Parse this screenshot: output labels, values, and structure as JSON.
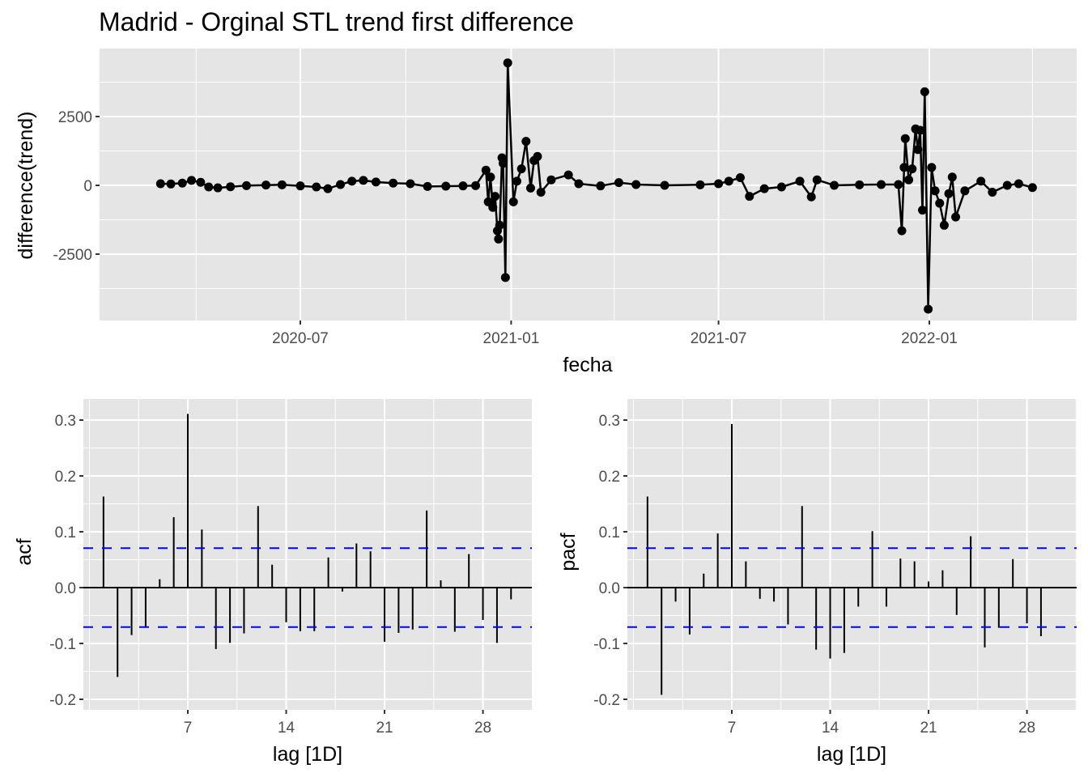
{
  "chart_data": [
    {
      "type": "line",
      "title": "Madrid - Orginal STL trend first difference",
      "xlabel": "fecha",
      "ylabel": "difference(trend)",
      "x_ticks": [
        "2020-07",
        "2021-01",
        "2021-07",
        "2022-01"
      ],
      "y_ticks": [
        "2500",
        "0",
        "-2500"
      ],
      "y_tick_values": [
        2500,
        0,
        -2500
      ],
      "ylim": [
        -4900,
        4900
      ],
      "xlim": [
        "2020-02-01",
        "2022-04-20"
      ],
      "grid": true,
      "markers": true,
      "series": [
        {
          "name": "difference(trend)",
          "color": "#000000",
          "points": [
            [
              "2020-03-01",
              60
            ],
            [
              "2020-03-10",
              50
            ],
            [
              "2020-03-20",
              80
            ],
            [
              "2020-03-28",
              180
            ],
            [
              "2020-04-05",
              110
            ],
            [
              "2020-04-12",
              -60
            ],
            [
              "2020-04-20",
              -90
            ],
            [
              "2020-05-01",
              -50
            ],
            [
              "2020-05-15",
              -10
            ],
            [
              "2020-06-01",
              10
            ],
            [
              "2020-06-15",
              20
            ],
            [
              "2020-07-01",
              -20
            ],
            [
              "2020-07-15",
              -60
            ],
            [
              "2020-07-25",
              -120
            ],
            [
              "2020-08-05",
              30
            ],
            [
              "2020-08-15",
              150
            ],
            [
              "2020-08-25",
              180
            ],
            [
              "2020-09-05",
              120
            ],
            [
              "2020-09-20",
              80
            ],
            [
              "2020-10-05",
              60
            ],
            [
              "2020-10-20",
              -40
            ],
            [
              "2020-11-05",
              -30
            ],
            [
              "2020-11-20",
              -20
            ],
            [
              "2020-12-01",
              -10
            ],
            [
              "2020-12-10",
              550
            ],
            [
              "2020-12-12",
              -600
            ],
            [
              "2020-12-14",
              300
            ],
            [
              "2020-12-16",
              -800
            ],
            [
              "2020-12-18",
              -400
            ],
            [
              "2020-12-20",
              -1650
            ],
            [
              "2020-12-21",
              -1950
            ],
            [
              "2020-12-22",
              -1450
            ],
            [
              "2020-12-24",
              1000
            ],
            [
              "2020-12-25",
              800
            ],
            [
              "2020-12-27",
              -3350
            ],
            [
              "2020-12-29",
              4450
            ],
            [
              "2021-01-03",
              -600
            ],
            [
              "2021-01-06",
              150
            ],
            [
              "2021-01-10",
              600
            ],
            [
              "2021-01-14",
              1600
            ],
            [
              "2021-01-18",
              -100
            ],
            [
              "2021-01-21",
              900
            ],
            [
              "2021-01-24",
              1050
            ],
            [
              "2021-01-27",
              -250
            ],
            [
              "2021-02-05",
              200
            ],
            [
              "2021-02-20",
              380
            ],
            [
              "2021-03-01",
              60
            ],
            [
              "2021-03-20",
              -20
            ],
            [
              "2021-04-05",
              100
            ],
            [
              "2021-04-20",
              30
            ],
            [
              "2021-05-15",
              0
            ],
            [
              "2021-06-15",
              20
            ],
            [
              "2021-07-01",
              60
            ],
            [
              "2021-07-10",
              150
            ],
            [
              "2021-07-20",
              280
            ],
            [
              "2021-07-28",
              -400
            ],
            [
              "2021-08-10",
              -120
            ],
            [
              "2021-08-25",
              -60
            ],
            [
              "2021-09-10",
              150
            ],
            [
              "2021-09-20",
              -420
            ],
            [
              "2021-09-25",
              200
            ],
            [
              "2021-10-10",
              0
            ],
            [
              "2021-11-01",
              20
            ],
            [
              "2021-11-20",
              30
            ],
            [
              "2021-12-05",
              30
            ],
            [
              "2021-12-08",
              -1650
            ],
            [
              "2021-12-10",
              650
            ],
            [
              "2021-12-11",
              1700
            ],
            [
              "2021-12-14",
              200
            ],
            [
              "2021-12-17",
              600
            ],
            [
              "2021-12-20",
              2050
            ],
            [
              "2021-12-22",
              1300
            ],
            [
              "2021-12-24",
              2000
            ],
            [
              "2021-12-26",
              -900
            ],
            [
              "2021-12-28",
              3400
            ],
            [
              "2021-12-31",
              -4500
            ],
            [
              "2022-01-03",
              650
            ],
            [
              "2022-01-06",
              -200
            ],
            [
              "2022-01-10",
              -650
            ],
            [
              "2022-01-14",
              -1450
            ],
            [
              "2022-01-18",
              -300
            ],
            [
              "2022-01-21",
              300
            ],
            [
              "2022-01-24",
              -1150
            ],
            [
              "2022-02-01",
              -200
            ],
            [
              "2022-02-15",
              150
            ],
            [
              "2022-02-25",
              -250
            ],
            [
              "2022-03-10",
              0
            ],
            [
              "2022-03-20",
              60
            ],
            [
              "2022-04-01",
              -80
            ]
          ]
        }
      ]
    },
    {
      "type": "bar",
      "subtype": "acf",
      "xlabel": "lag [1D]",
      "ylabel": "acf",
      "x_ticks": [
        "7",
        "14",
        "21",
        "28"
      ],
      "x_tick_values": [
        7,
        14,
        21,
        28
      ],
      "y_ticks": [
        "0.3",
        "0.2",
        "0.1",
        "0.0",
        "-0.1",
        "-0.2"
      ],
      "y_tick_values": [
        0.3,
        0.2,
        0.1,
        0.0,
        -0.1,
        -0.2
      ],
      "ylim": [
        -0.22,
        0.335
      ],
      "xlim": [
        -0.5,
        31.5
      ],
      "confidence_bound": 0.0707,
      "confidence_color": "#0000ff",
      "lags": [
        1,
        2,
        3,
        4,
        5,
        6,
        7,
        8,
        9,
        10,
        11,
        12,
        13,
        14,
        15,
        16,
        17,
        18,
        19,
        20,
        21,
        22,
        23,
        24,
        25,
        26,
        27,
        28,
        29,
        30
      ],
      "values": [
        0.163,
        -0.16,
        -0.085,
        -0.07,
        0.015,
        0.126,
        0.311,
        0.104,
        -0.11,
        -0.099,
        -0.082,
        0.146,
        0.041,
        -0.062,
        -0.078,
        -0.078,
        0.054,
        -0.007,
        0.079,
        0.065,
        -0.097,
        -0.081,
        -0.075,
        0.138,
        0.013,
        -0.079,
        0.06,
        -0.058,
        -0.099,
        -0.021
      ]
    },
    {
      "type": "bar",
      "subtype": "pacf",
      "xlabel": "lag [1D]",
      "ylabel": "pacf",
      "x_ticks": [
        "7",
        "14",
        "21",
        "28"
      ],
      "x_tick_values": [
        7,
        14,
        21,
        28
      ],
      "y_ticks": [
        "0.3",
        "0.2",
        "0.1",
        "0.0",
        "-0.1",
        "-0.2"
      ],
      "y_tick_values": [
        0.3,
        0.2,
        0.1,
        0.0,
        -0.1,
        -0.2
      ],
      "ylim": [
        -0.22,
        0.335
      ],
      "xlim": [
        -0.5,
        31.5
      ],
      "confidence_bound": 0.0707,
      "confidence_color": "#0000ff",
      "lags": [
        1,
        2,
        3,
        4,
        5,
        6,
        7,
        8,
        9,
        10,
        11,
        12,
        13,
        14,
        15,
        16,
        17,
        18,
        19,
        20,
        21,
        22,
        23,
        24,
        25,
        26,
        27,
        28,
        29
      ],
      "values": [
        0.163,
        -0.192,
        -0.025,
        -0.084,
        0.025,
        0.097,
        0.293,
        0.047,
        -0.02,
        -0.025,
        -0.066,
        0.146,
        -0.111,
        -0.127,
        -0.117,
        -0.034,
        0.101,
        -0.034,
        0.052,
        0.047,
        0.011,
        0.031,
        -0.049,
        0.092,
        -0.107,
        -0.072,
        0.051,
        -0.064,
        -0.087
      ]
    }
  ],
  "colors": {
    "panel_bg": "#e5e5e5",
    "grid": "#ffffff",
    "ink": "#000000",
    "tick_text": "#4d4d4d",
    "conf_line": "#0000ff"
  }
}
